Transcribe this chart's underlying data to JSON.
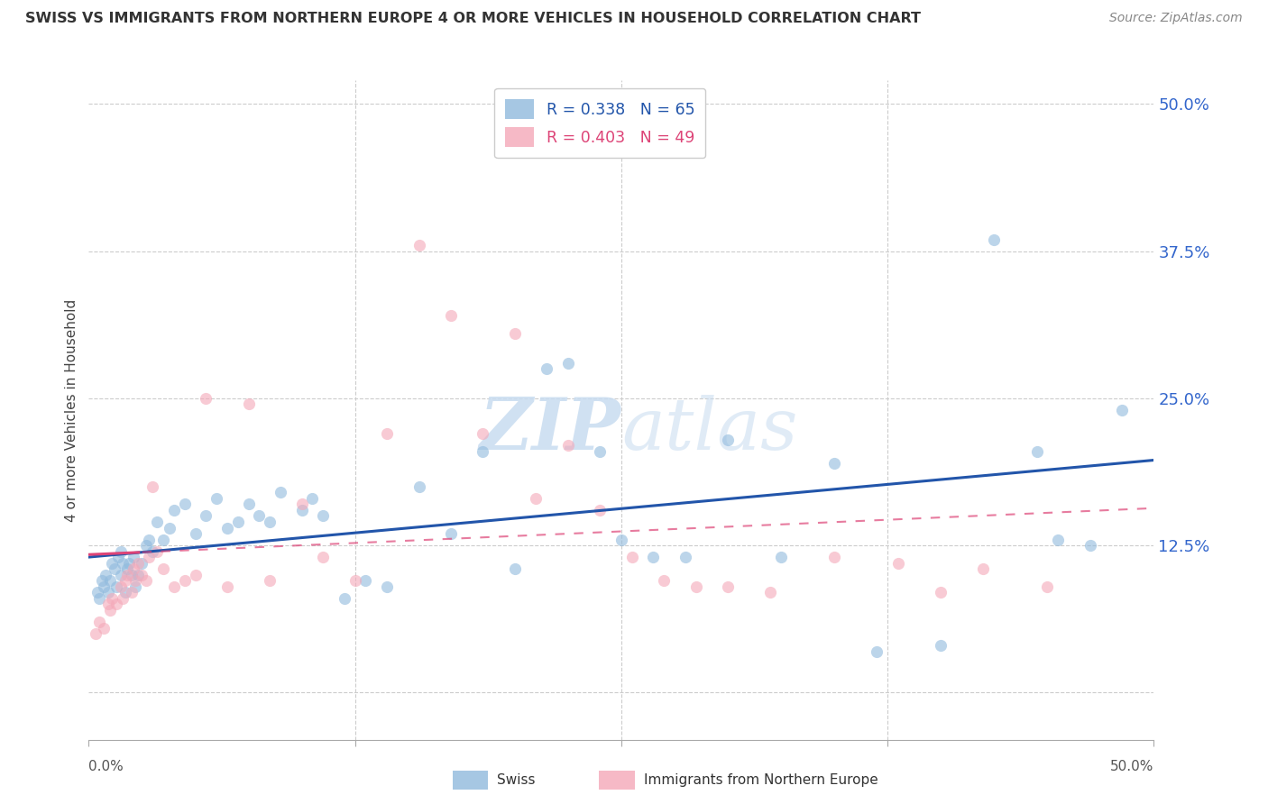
{
  "title": "SWISS VS IMMIGRANTS FROM NORTHERN EUROPE 4 OR MORE VEHICLES IN HOUSEHOLD CORRELATION CHART",
  "source": "Source: ZipAtlas.com",
  "ylabel": "4 or more Vehicles in Household",
  "ytick_labels": [
    "50.0%",
    "37.5%",
    "25.0%",
    "12.5%"
  ],
  "ytick_values": [
    50.0,
    37.5,
    25.0,
    12.5
  ],
  "xmin": 0.0,
  "xmax": 50.0,
  "ymin": -4.0,
  "ymax": 52.0,
  "legend_swiss_r": "R = 0.338",
  "legend_swiss_n": "N = 65",
  "legend_imm_r": "R = 0.403",
  "legend_imm_n": "N = 49",
  "swiss_color": "#90BADD",
  "imm_color": "#F4A8B8",
  "swiss_line_color": "#2255AA",
  "imm_line_color": "#DD4477",
  "watermark_color": "#C8DCF0",
  "swiss_x": [
    0.4,
    0.5,
    0.6,
    0.7,
    0.8,
    0.9,
    1.0,
    1.1,
    1.2,
    1.3,
    1.4,
    1.5,
    1.5,
    1.6,
    1.7,
    1.8,
    1.9,
    2.0,
    2.1,
    2.2,
    2.3,
    2.5,
    2.7,
    2.8,
    3.0,
    3.2,
    3.5,
    3.8,
    4.0,
    4.5,
    5.0,
    5.5,
    6.0,
    6.5,
    7.0,
    7.5,
    8.0,
    8.5,
    9.0,
    10.0,
    10.5,
    11.0,
    12.0,
    13.0,
    14.0,
    15.5,
    17.0,
    18.5,
    20.0,
    21.5,
    22.5,
    24.0,
    25.0,
    26.5,
    28.0,
    30.0,
    32.5,
    35.0,
    37.0,
    40.0,
    42.5,
    44.5,
    45.5,
    47.0,
    48.5
  ],
  "swiss_y": [
    8.5,
    8.0,
    9.5,
    9.0,
    10.0,
    8.5,
    9.5,
    11.0,
    10.5,
    9.0,
    11.5,
    10.0,
    12.0,
    11.0,
    8.5,
    10.5,
    11.0,
    10.0,
    11.5,
    9.0,
    10.0,
    11.0,
    12.5,
    13.0,
    12.0,
    14.5,
    13.0,
    14.0,
    15.5,
    16.0,
    13.5,
    15.0,
    16.5,
    14.0,
    14.5,
    16.0,
    15.0,
    14.5,
    17.0,
    15.5,
    16.5,
    15.0,
    8.0,
    9.5,
    9.0,
    17.5,
    13.5,
    20.5,
    10.5,
    27.5,
    28.0,
    20.5,
    13.0,
    11.5,
    11.5,
    21.5,
    11.5,
    19.5,
    3.5,
    4.0,
    38.5,
    20.5,
    13.0,
    12.5,
    24.0
  ],
  "imm_x": [
    0.3,
    0.5,
    0.7,
    0.9,
    1.0,
    1.1,
    1.3,
    1.5,
    1.6,
    1.7,
    1.8,
    2.0,
    2.1,
    2.2,
    2.3,
    2.5,
    2.7,
    2.8,
    3.0,
    3.2,
    3.5,
    4.0,
    4.5,
    5.0,
    5.5,
    6.5,
    7.5,
    8.5,
    10.0,
    11.0,
    12.5,
    14.0,
    15.5,
    17.0,
    18.5,
    20.0,
    21.0,
    22.5,
    24.0,
    25.5,
    27.0,
    28.5,
    30.0,
    32.0,
    35.0,
    38.0,
    40.0,
    42.0,
    45.0
  ],
  "imm_y": [
    5.0,
    6.0,
    5.5,
    7.5,
    7.0,
    8.0,
    7.5,
    9.0,
    8.0,
    9.5,
    10.0,
    8.5,
    10.5,
    9.5,
    11.0,
    10.0,
    9.5,
    11.5,
    17.5,
    12.0,
    10.5,
    9.0,
    9.5,
    10.0,
    25.0,
    9.0,
    24.5,
    9.5,
    16.0,
    11.5,
    9.5,
    22.0,
    38.0,
    32.0,
    22.0,
    30.5,
    16.5,
    21.0,
    15.5,
    11.5,
    9.5,
    9.0,
    9.0,
    8.5,
    11.5,
    11.0,
    8.5,
    10.5,
    9.0
  ]
}
